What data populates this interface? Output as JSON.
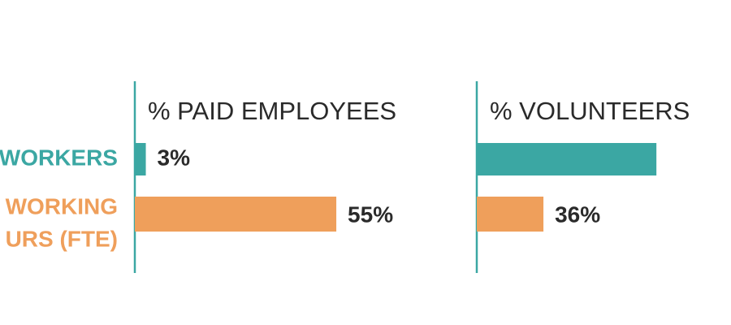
{
  "chart_data": [
    {
      "type": "bar",
      "orientation": "horizontal",
      "title": "% PAID EMPLOYEES",
      "categories": [
        "WORKERS",
        [
          "WORKING",
          "URS (FTE)"
        ]
      ],
      "values": [
        3,
        55
      ],
      "value_labels": [
        "3%",
        "55%"
      ],
      "colors": [
        "#3ba7a3",
        "#ef9f5b"
      ],
      "xlim": [
        0,
        100
      ]
    },
    {
      "type": "bar",
      "orientation": "horizontal",
      "title": "% VOLUNTEERS",
      "values": [
        97,
        36
      ],
      "value_labels": [
        null,
        "36%"
      ],
      "colors": [
        "#3ba7a3",
        "#ef9f5b"
      ],
      "xlim": [
        0,
        100
      ]
    }
  ]
}
